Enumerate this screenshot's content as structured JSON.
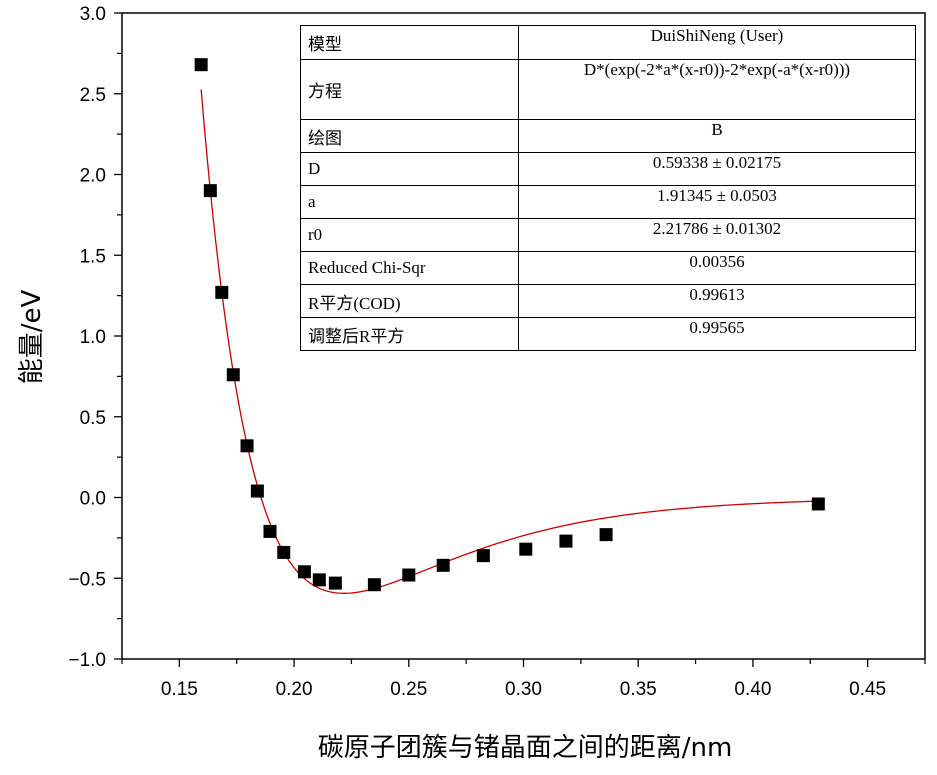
{
  "chart_data": {
    "type": "scatter",
    "xlabel": "碳原子团簇与锗晶面之间的距离/nm",
    "ylabel": "能量/eV",
    "xlim": [
      0.125,
      0.475
    ],
    "ylim": [
      -1.0,
      3.0
    ],
    "xticks": [
      "0.15",
      "0.20",
      "0.25",
      "0.30",
      "0.35",
      "0.40",
      "0.45"
    ],
    "yticks": [
      "−1.0",
      "−0.5",
      "0.0",
      "0.5",
      "1.0",
      "1.5",
      "2.0",
      "2.5",
      "3.0"
    ],
    "xtick_values": [
      0.15,
      0.2,
      0.25,
      0.3,
      0.35,
      0.4,
      0.45
    ],
    "ytick_values": [
      -1.0,
      -0.5,
      0.0,
      0.5,
      1.0,
      1.5,
      2.0,
      2.5,
      3.0
    ],
    "grid": false,
    "series": [
      {
        "marker": "filled-square",
        "color": "#000000",
        "x": [
          0.1595,
          0.1635,
          0.1685,
          0.1735,
          0.1795,
          0.184,
          0.1895,
          0.1955,
          0.2045,
          0.211,
          0.218,
          0.235,
          0.25,
          0.265,
          0.2825,
          0.301,
          0.3185,
          0.336,
          0.4285
        ],
        "y": [
          2.68,
          1.9,
          1.27,
          0.76,
          0.32,
          0.04,
          -0.21,
          -0.34,
          -0.46,
          -0.51,
          -0.53,
          -0.54,
          -0.48,
          -0.42,
          -0.36,
          -0.32,
          -0.27,
          -0.23,
          -0.04
        ]
      },
      {
        "type": "line",
        "color": "#cc0000",
        "model": "morse",
        "params": {
          "D": 0.59338,
          "a": 1.91345,
          "r0": 2.21786
        },
        "x_range": [
          0.1595,
          0.4285
        ]
      }
    ]
  },
  "fit_table": [
    {
      "key": "模型",
      "value": "DuiShiNeng (User)"
    },
    {
      "key": "方程",
      "value": "D*(exp(-2*a*(x-r0))-2*exp(-a*(x-r0)))"
    },
    {
      "key": "绘图",
      "value": "B"
    },
    {
      "key": "D",
      "value": "0.59338 ± 0.02175"
    },
    {
      "key": "a",
      "value": "1.91345 ± 0.0503"
    },
    {
      "key": "r0",
      "value": "2.21786 ± 0.01302"
    },
    {
      "key": "Reduced Chi-Sqr",
      "value": "0.00356"
    },
    {
      "key": "R平方(COD)",
      "value": "0.99613"
    },
    {
      "key": "调整后R平方",
      "value": "0.99565"
    }
  ]
}
